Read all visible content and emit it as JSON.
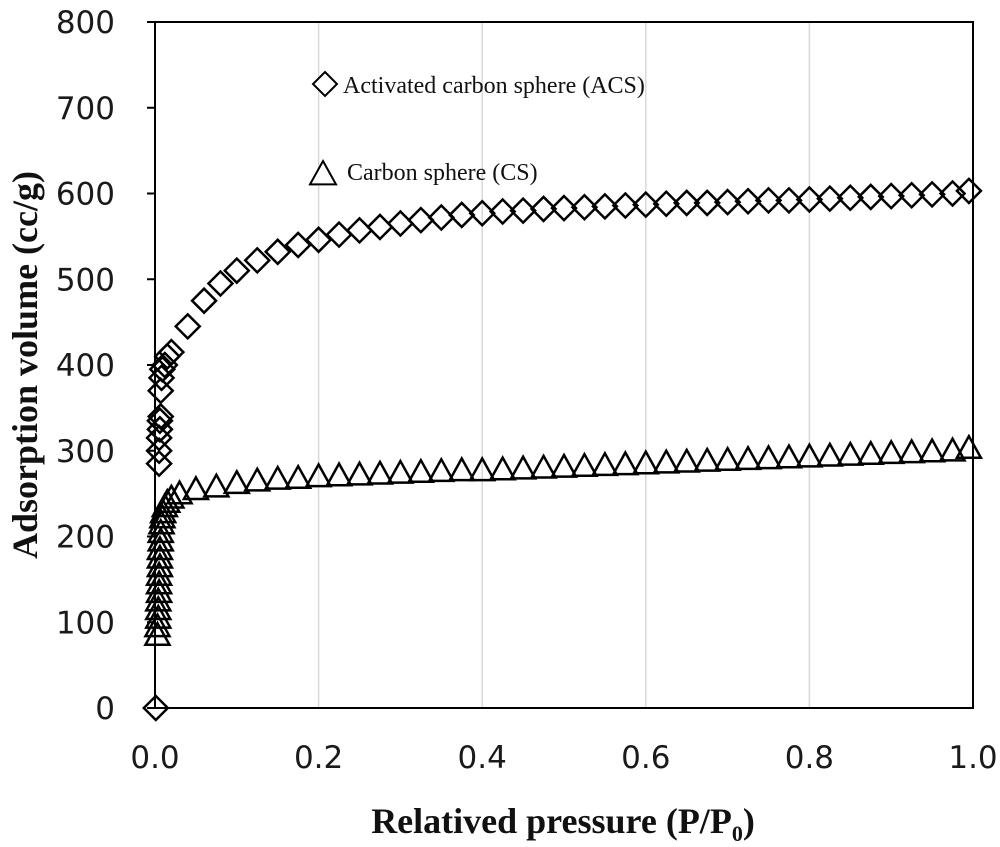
{
  "chart_data": {
    "type": "scatter",
    "xlabel": "Relatived pressure (P/P",
    "xlabel_subscript": "0",
    "xlabel_suffix": ")",
    "ylabel": "Adsorption volume (cc/g)",
    "xlim": [
      0.0,
      1.0
    ],
    "ylim": [
      0,
      800
    ],
    "xticks": [
      "0.0",
      "0.2",
      "0.4",
      "0.6",
      "0.8",
      "1.0"
    ],
    "yticks": [
      "0",
      "100",
      "200",
      "300",
      "400",
      "500",
      "600",
      "700",
      "800"
    ],
    "grid": "vertical",
    "legend_position": "top-center",
    "series": [
      {
        "name": "Activated carbon sphere (ACS)",
        "marker": "diamond",
        "color": "#000000",
        "x": [
          0.001,
          0.005,
          0.005,
          0.005,
          0.006,
          0.006,
          0.007,
          0.007,
          0.008,
          0.009,
          0.012,
          0.015,
          0.02,
          0.04,
          0.06,
          0.08,
          0.1,
          0.125,
          0.15,
          0.175,
          0.2,
          0.225,
          0.25,
          0.275,
          0.3,
          0.325,
          0.35,
          0.375,
          0.4,
          0.425,
          0.45,
          0.475,
          0.5,
          0.525,
          0.55,
          0.575,
          0.6,
          0.625,
          0.65,
          0.675,
          0.7,
          0.725,
          0.75,
          0.775,
          0.8,
          0.825,
          0.85,
          0.875,
          0.9,
          0.925,
          0.95,
          0.975,
          0.995
        ],
        "y": [
          0,
          285,
          300,
          315,
          325,
          335,
          340,
          370,
          385,
          395,
          400,
          410,
          415,
          445,
          475,
          495,
          510,
          522,
          532,
          540,
          546,
          552,
          557,
          561,
          565,
          569,
          572,
          575,
          577,
          579,
          580,
          582,
          583,
          584,
          585,
          586,
          587,
          588,
          589,
          589,
          590,
          591,
          592,
          592,
          593,
          594,
          595,
          596,
          597,
          598,
          599,
          600,
          603
        ]
      },
      {
        "name": "Carbon sphere (CS)",
        "marker": "triangle",
        "color": "#000000",
        "x": [
          0.003,
          0.003,
          0.004,
          0.004,
          0.004,
          0.005,
          0.005,
          0.005,
          0.006,
          0.006,
          0.006,
          0.007,
          0.007,
          0.008,
          0.009,
          0.01,
          0.012,
          0.015,
          0.02,
          0.03,
          0.05,
          0.075,
          0.1,
          0.125,
          0.15,
          0.175,
          0.2,
          0.225,
          0.25,
          0.275,
          0.3,
          0.325,
          0.35,
          0.375,
          0.4,
          0.425,
          0.45,
          0.475,
          0.5,
          0.525,
          0.55,
          0.575,
          0.6,
          0.625,
          0.65,
          0.675,
          0.7,
          0.725,
          0.75,
          0.775,
          0.8,
          0.825,
          0.85,
          0.875,
          0.9,
          0.925,
          0.95,
          0.975,
          0.995
        ],
        "y": [
          85,
          95,
          105,
          115,
          125,
          135,
          145,
          155,
          165,
          175,
          185,
          195,
          205,
          215,
          222,
          228,
          235,
          240,
          245,
          250,
          255,
          258,
          262,
          265,
          267,
          268,
          270,
          271,
          272,
          273,
          274,
          275,
          276,
          277,
          277,
          278,
          279,
          280,
          281,
          282,
          283,
          284,
          285,
          286,
          287,
          288,
          289,
          290,
          291,
          292,
          293,
          294,
          295,
          296,
          297,
          298,
          299,
          300,
          303
        ]
      }
    ]
  }
}
